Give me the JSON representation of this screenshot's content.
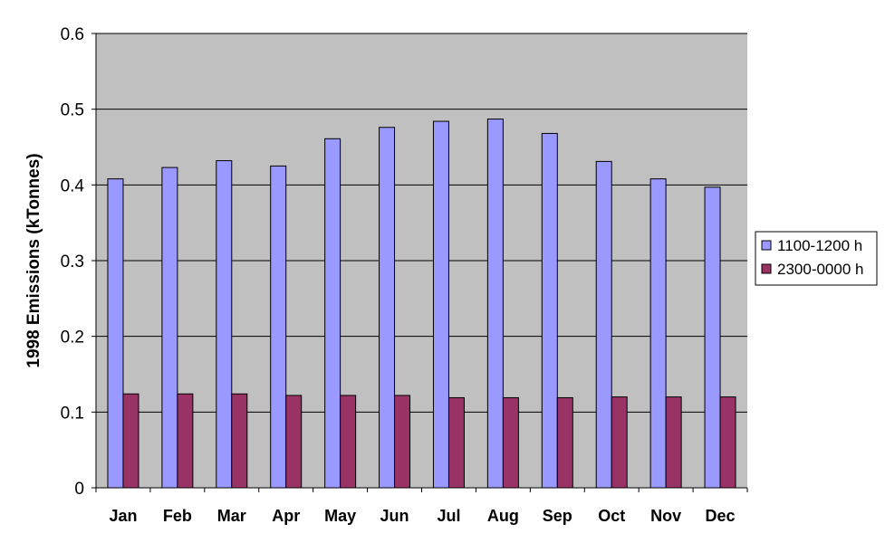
{
  "chart_data": {
    "type": "bar",
    "title": "",
    "xlabel": "",
    "ylabel": "1998 Emissions (kTonnes)",
    "ylim": [
      0,
      0.6
    ],
    "yticks": [
      "0",
      "0.1",
      "0.2",
      "0.3",
      "0.4",
      "0.5",
      "0.6"
    ],
    "grid": true,
    "legend_position": "right",
    "categories": [
      "Jan",
      "Feb",
      "Mar",
      "Apr",
      "May",
      "Jun",
      "Jul",
      "Aug",
      "Sep",
      "Oct",
      "Nov",
      "Dec"
    ],
    "series": [
      {
        "name": "1100-1200 h",
        "color": "#9999ff",
        "values": [
          0.408,
          0.423,
          0.432,
          0.425,
          0.461,
          0.476,
          0.484,
          0.487,
          0.468,
          0.431,
          0.408,
          0.397
        ]
      },
      {
        "name": "2300-0000 h",
        "color": "#993366",
        "values": [
          0.124,
          0.124,
          0.124,
          0.122,
          0.122,
          0.122,
          0.119,
          0.119,
          0.119,
          0.12,
          0.12,
          0.12
        ]
      }
    ],
    "plot_background": "#c0c0c0"
  }
}
